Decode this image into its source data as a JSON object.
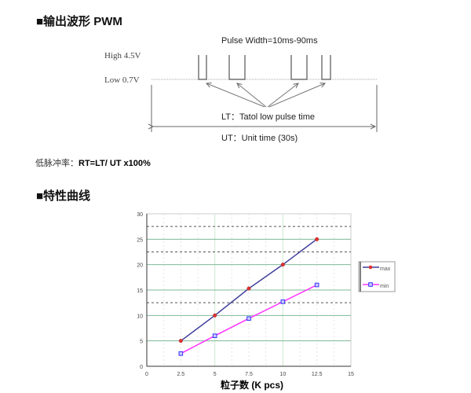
{
  "section1": {
    "title": "■输出波形 PWM"
  },
  "pwm_diagram": {
    "pulse_width": "Pulse Width=10ms-90ms",
    "high_label": "High  4.5V",
    "low_label": "Low  0.7V",
    "lt_label": "LT：Tatol low pulse time",
    "ut_label": "UT：Unit time (30s)"
  },
  "formula": {
    "prefix": "低脉冲率：",
    "expr": "RT=LT/ UT x100%"
  },
  "section2": {
    "title": "■特性曲线"
  },
  "chart_data": {
    "type": "line",
    "xlabel": "粒子数 (K pcs)",
    "ylabel": "",
    "xlim": [
      0,
      15
    ],
    "ylim": [
      0,
      30
    ],
    "xticks": [
      "0",
      "2.5",
      "5",
      "7.5",
      "10",
      "12.5",
      "15"
    ],
    "yticks": [
      "0",
      "5",
      "10",
      "15",
      "20",
      "25",
      "30"
    ],
    "grid": true,
    "legend": "right",
    "x": [
      2.5,
      5,
      7.5,
      10,
      12.5
    ],
    "series": [
      {
        "name": "max",
        "values": [
          5,
          10,
          15.3,
          20,
          25
        ],
        "color": "#3c3c9a",
        "marker_color": "#e03030"
      },
      {
        "name": "min",
        "values": [
          2.5,
          6,
          9.4,
          12.7,
          16
        ],
        "color": "#ff33ff",
        "marker_color": "#3333ff"
      }
    ],
    "dashed_reference_lines": [
      12.5,
      22.5,
      27.5
    ]
  }
}
